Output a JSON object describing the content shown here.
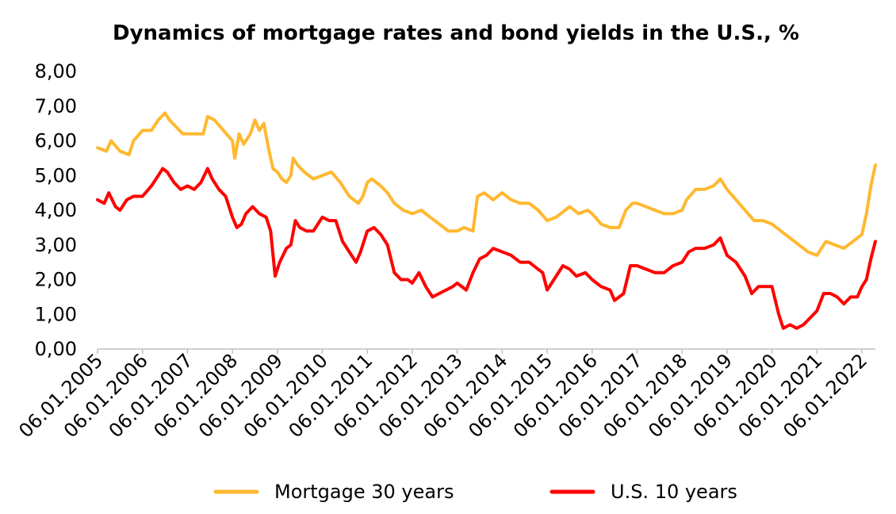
{
  "chart_data": {
    "type": "line",
    "title": "Dynamics of mortgage rates and bond yields in the U.S., %",
    "xlabel": "",
    "ylabel": "",
    "ylim": [
      0,
      8
    ],
    "yticks": [
      "0,00",
      "1,00",
      "2,00",
      "3,00",
      "4,00",
      "5,00",
      "6,00",
      "7,00",
      "8,00"
    ],
    "x": [
      "06.01.2005",
      "06.01.2006",
      "06.01.2007",
      "06.01.2008",
      "06.01.2009",
      "06.01.2010",
      "06.01.2011",
      "06.01.2012",
      "06.01.2013",
      "06.01.2014",
      "06.01.2015",
      "06.01.2016",
      "06.01.2017",
      "06.01.2018",
      "06.01.2019",
      "06.01.2020",
      "06.01.2021",
      "06.01.2022"
    ],
    "legend_position": "bottom",
    "grid": false,
    "series": [
      {
        "name": "Mortgage 30 years",
        "color": "#FFB830",
        "points": [
          [
            2005.0,
            5.8
          ],
          [
            2005.2,
            5.7
          ],
          [
            2005.3,
            6.0
          ],
          [
            2005.5,
            5.7
          ],
          [
            2005.7,
            5.6
          ],
          [
            2005.8,
            6.0
          ],
          [
            2006.0,
            6.3
          ],
          [
            2006.2,
            6.3
          ],
          [
            2006.35,
            6.6
          ],
          [
            2006.5,
            6.8
          ],
          [
            2006.6,
            6.6
          ],
          [
            2006.75,
            6.4
          ],
          [
            2006.9,
            6.2
          ],
          [
            2007.0,
            6.2
          ],
          [
            2007.2,
            6.2
          ],
          [
            2007.35,
            6.2
          ],
          [
            2007.45,
            6.7
          ],
          [
            2007.6,
            6.6
          ],
          [
            2007.8,
            6.3
          ],
          [
            2008.0,
            6.0
          ],
          [
            2008.05,
            5.5
          ],
          [
            2008.15,
            6.2
          ],
          [
            2008.25,
            5.9
          ],
          [
            2008.4,
            6.2
          ],
          [
            2008.5,
            6.6
          ],
          [
            2008.6,
            6.3
          ],
          [
            2008.7,
            6.5
          ],
          [
            2008.8,
            5.8
          ],
          [
            2008.9,
            5.2
          ],
          [
            2009.0,
            5.1
          ],
          [
            2009.1,
            4.9
          ],
          [
            2009.2,
            4.8
          ],
          [
            2009.3,
            5.0
          ],
          [
            2009.35,
            5.5
          ],
          [
            2009.45,
            5.3
          ],
          [
            2009.6,
            5.1
          ],
          [
            2009.8,
            4.9
          ],
          [
            2010.0,
            5.0
          ],
          [
            2010.2,
            5.1
          ],
          [
            2010.4,
            4.8
          ],
          [
            2010.6,
            4.4
          ],
          [
            2010.8,
            4.2
          ],
          [
            2010.9,
            4.4
          ],
          [
            2011.0,
            4.8
          ],
          [
            2011.1,
            4.9
          ],
          [
            2011.3,
            4.7
          ],
          [
            2011.45,
            4.5
          ],
          [
            2011.6,
            4.2
          ],
          [
            2011.8,
            4.0
          ],
          [
            2012.0,
            3.9
          ],
          [
            2012.2,
            4.0
          ],
          [
            2012.4,
            3.8
          ],
          [
            2012.6,
            3.6
          ],
          [
            2012.8,
            3.4
          ],
          [
            2013.0,
            3.4
          ],
          [
            2013.15,
            3.5
          ],
          [
            2013.35,
            3.4
          ],
          [
            2013.45,
            4.4
          ],
          [
            2013.6,
            4.5
          ],
          [
            2013.8,
            4.3
          ],
          [
            2014.0,
            4.5
          ],
          [
            2014.2,
            4.3
          ],
          [
            2014.4,
            4.2
          ],
          [
            2014.6,
            4.2
          ],
          [
            2014.8,
            4.0
          ],
          [
            2015.0,
            3.7
          ],
          [
            2015.2,
            3.8
          ],
          [
            2015.4,
            4.0
          ],
          [
            2015.5,
            4.1
          ],
          [
            2015.7,
            3.9
          ],
          [
            2015.9,
            4.0
          ],
          [
            2016.0,
            3.9
          ],
          [
            2016.2,
            3.6
          ],
          [
            2016.4,
            3.5
          ],
          [
            2016.6,
            3.5
          ],
          [
            2016.75,
            4.0
          ],
          [
            2016.9,
            4.2
          ],
          [
            2017.0,
            4.2
          ],
          [
            2017.2,
            4.1
          ],
          [
            2017.4,
            4.0
          ],
          [
            2017.6,
            3.9
          ],
          [
            2017.8,
            3.9
          ],
          [
            2018.0,
            4.0
          ],
          [
            2018.1,
            4.3
          ],
          [
            2018.3,
            4.6
          ],
          [
            2018.5,
            4.6
          ],
          [
            2018.7,
            4.7
          ],
          [
            2018.85,
            4.9
          ],
          [
            2019.0,
            4.6
          ],
          [
            2019.2,
            4.3
          ],
          [
            2019.4,
            4.0
          ],
          [
            2019.6,
            3.7
          ],
          [
            2019.8,
            3.7
          ],
          [
            2020.0,
            3.6
          ],
          [
            2020.2,
            3.4
          ],
          [
            2020.4,
            3.2
          ],
          [
            2020.6,
            3.0
          ],
          [
            2020.8,
            2.8
          ],
          [
            2021.0,
            2.7
          ],
          [
            2021.2,
            3.1
          ],
          [
            2021.4,
            3.0
          ],
          [
            2021.6,
            2.9
          ],
          [
            2021.8,
            3.1
          ],
          [
            2022.0,
            3.3
          ],
          [
            2022.1,
            3.9
          ],
          [
            2022.2,
            4.7
          ],
          [
            2022.3,
            5.3
          ]
        ]
      },
      {
        "name": "U.S. 10 years",
        "color": "#FF0000",
        "points": [
          [
            2005.0,
            4.3
          ],
          [
            2005.15,
            4.2
          ],
          [
            2005.25,
            4.5
          ],
          [
            2005.4,
            4.1
          ],
          [
            2005.5,
            4.0
          ],
          [
            2005.65,
            4.3
          ],
          [
            2005.8,
            4.4
          ],
          [
            2005.9,
            4.4
          ],
          [
            2006.0,
            4.4
          ],
          [
            2006.2,
            4.7
          ],
          [
            2006.35,
            5.0
          ],
          [
            2006.45,
            5.2
          ],
          [
            2006.55,
            5.1
          ],
          [
            2006.7,
            4.8
          ],
          [
            2006.85,
            4.6
          ],
          [
            2007.0,
            4.7
          ],
          [
            2007.15,
            4.6
          ],
          [
            2007.3,
            4.8
          ],
          [
            2007.45,
            5.2
          ],
          [
            2007.55,
            4.9
          ],
          [
            2007.7,
            4.6
          ],
          [
            2007.85,
            4.4
          ],
          [
            2008.0,
            3.8
          ],
          [
            2008.1,
            3.5
          ],
          [
            2008.2,
            3.6
          ],
          [
            2008.3,
            3.9
          ],
          [
            2008.45,
            4.1
          ],
          [
            2008.6,
            3.9
          ],
          [
            2008.75,
            3.8
          ],
          [
            2008.85,
            3.4
          ],
          [
            2008.95,
            2.1
          ],
          [
            2009.05,
            2.5
          ],
          [
            2009.2,
            2.9
          ],
          [
            2009.3,
            3.0
          ],
          [
            2009.4,
            3.7
          ],
          [
            2009.5,
            3.5
          ],
          [
            2009.65,
            3.4
          ],
          [
            2009.8,
            3.4
          ],
          [
            2009.9,
            3.6
          ],
          [
            2010.0,
            3.8
          ],
          [
            2010.15,
            3.7
          ],
          [
            2010.3,
            3.7
          ],
          [
            2010.45,
            3.1
          ],
          [
            2010.6,
            2.8
          ],
          [
            2010.75,
            2.5
          ],
          [
            2010.85,
            2.8
          ],
          [
            2011.0,
            3.4
          ],
          [
            2011.15,
            3.5
          ],
          [
            2011.3,
            3.3
          ],
          [
            2011.45,
            3.0
          ],
          [
            2011.6,
            2.2
          ],
          [
            2011.75,
            2.0
          ],
          [
            2011.9,
            2.0
          ],
          [
            2012.0,
            1.9
          ],
          [
            2012.15,
            2.2
          ],
          [
            2012.3,
            1.8
          ],
          [
            2012.45,
            1.5
          ],
          [
            2012.6,
            1.6
          ],
          [
            2012.75,
            1.7
          ],
          [
            2012.9,
            1.8
          ],
          [
            2013.0,
            1.9
          ],
          [
            2013.2,
            1.7
          ],
          [
            2013.35,
            2.2
          ],
          [
            2013.5,
            2.6
          ],
          [
            2013.65,
            2.7
          ],
          [
            2013.8,
            2.9
          ],
          [
            2014.0,
            2.8
          ],
          [
            2014.2,
            2.7
          ],
          [
            2014.4,
            2.5
          ],
          [
            2014.6,
            2.5
          ],
          [
            2014.8,
            2.3
          ],
          [
            2014.9,
            2.2
          ],
          [
            2015.0,
            1.7
          ],
          [
            2015.15,
            2.0
          ],
          [
            2015.35,
            2.4
          ],
          [
            2015.5,
            2.3
          ],
          [
            2015.65,
            2.1
          ],
          [
            2015.85,
            2.2
          ],
          [
            2016.0,
            2.0
          ],
          [
            2016.2,
            1.8
          ],
          [
            2016.4,
            1.7
          ],
          [
            2016.5,
            1.4
          ],
          [
            2016.7,
            1.6
          ],
          [
            2016.85,
            2.4
          ],
          [
            2017.0,
            2.4
          ],
          [
            2017.2,
            2.3
          ],
          [
            2017.4,
            2.2
          ],
          [
            2017.6,
            2.2
          ],
          [
            2017.8,
            2.4
          ],
          [
            2018.0,
            2.5
          ],
          [
            2018.15,
            2.8
          ],
          [
            2018.3,
            2.9
          ],
          [
            2018.5,
            2.9
          ],
          [
            2018.7,
            3.0
          ],
          [
            2018.85,
            3.2
          ],
          [
            2019.0,
            2.7
          ],
          [
            2019.2,
            2.5
          ],
          [
            2019.4,
            2.1
          ],
          [
            2019.55,
            1.6
          ],
          [
            2019.7,
            1.8
          ],
          [
            2019.9,
            1.8
          ],
          [
            2020.0,
            1.8
          ],
          [
            2020.15,
            1.0
          ],
          [
            2020.25,
            0.6
          ],
          [
            2020.4,
            0.7
          ],
          [
            2020.55,
            0.6
          ],
          [
            2020.7,
            0.7
          ],
          [
            2020.85,
            0.9
          ],
          [
            2021.0,
            1.1
          ],
          [
            2021.15,
            1.6
          ],
          [
            2021.3,
            1.6
          ],
          [
            2021.45,
            1.5
          ],
          [
            2021.6,
            1.3
          ],
          [
            2021.75,
            1.5
          ],
          [
            2021.9,
            1.5
          ],
          [
            2022.0,
            1.8
          ],
          [
            2022.1,
            2.0
          ],
          [
            2022.2,
            2.6
          ],
          [
            2022.3,
            3.1
          ]
        ]
      }
    ]
  }
}
